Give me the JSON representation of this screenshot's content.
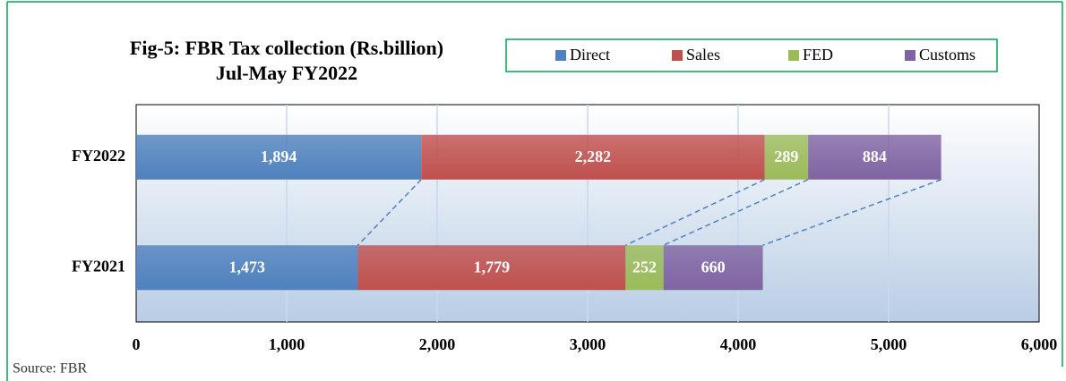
{
  "chart_data": {
    "type": "stacked_bar_horizontal",
    "title": "Fig-5: FBR Tax collection (Rs.billion)",
    "subtitle": "Jul-May FY2022",
    "categories": [
      "FY2022",
      "FY2021"
    ],
    "series": [
      {
        "name": "Direct",
        "color": "#4f81bd",
        "values": [
          1894,
          1473
        ],
        "value_labels": [
          "1,894",
          "1,473"
        ]
      },
      {
        "name": "Sales",
        "color": "#c0504d",
        "values": [
          2282,
          1779
        ],
        "value_labels": [
          "2,282",
          "1,779"
        ]
      },
      {
        "name": "FED",
        "color": "#9bbb59",
        "values": [
          289,
          252
        ]
      },
      {
        "name": "Customs",
        "color": "#8064a2",
        "values": [
          884,
          660
        ]
      }
    ],
    "xlim": [
      0,
      6000
    ],
    "xticks": [
      0,
      {
        "value": 1000,
        "label": "1,000"
      },
      {
        "value": 2000,
        "label": "2,000"
      },
      {
        "value": 3000,
        "label": "3,000"
      },
      {
        "value": 4000,
        "label": "4,000"
      },
      {
        "value": 5000,
        "label": "5,000"
      },
      {
        "value": 6000,
        "label": "6,000"
      }
    ],
    "grid": true,
    "source": "Source: FBR"
  }
}
